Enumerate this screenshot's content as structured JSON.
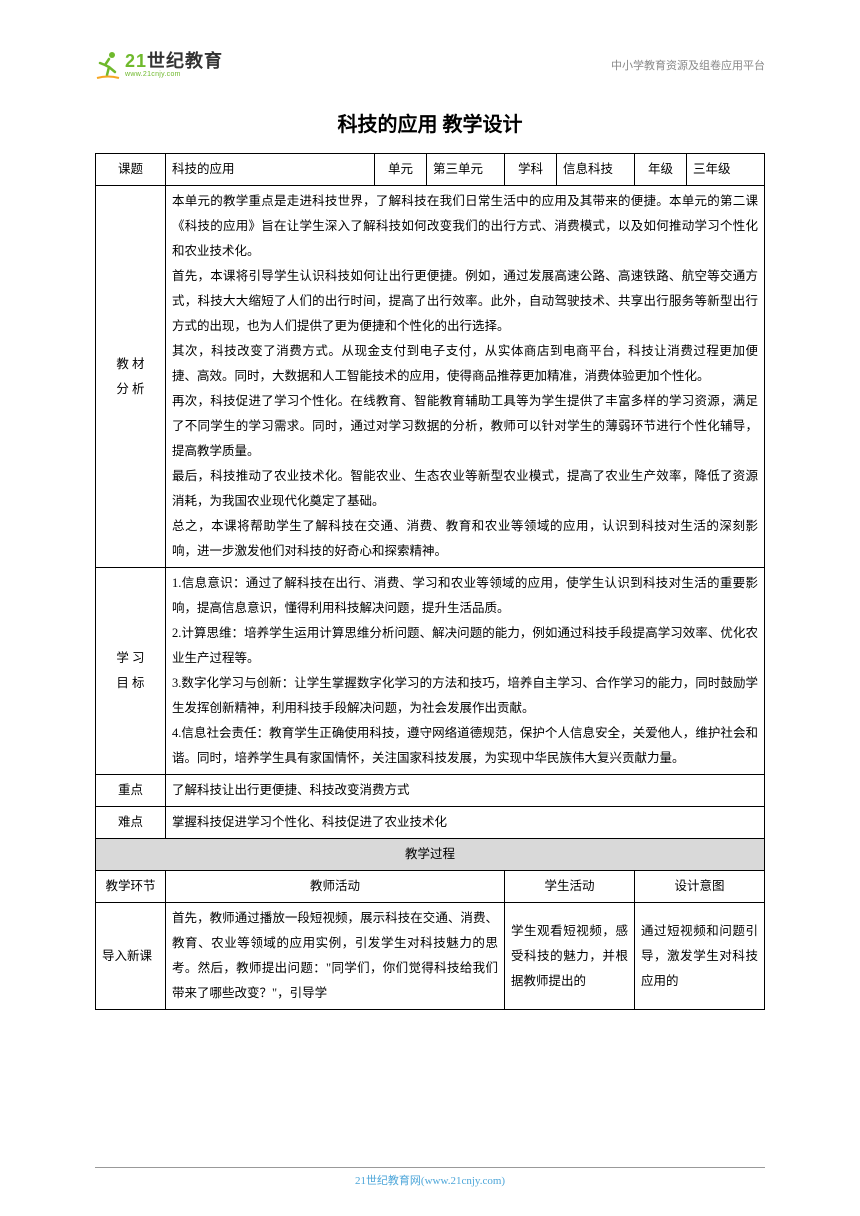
{
  "header": {
    "logo_main_part1": "21",
    "logo_main_part2": "世纪教育",
    "logo_sub": "www.21cnjy.com",
    "right_text": "中小学教育资源及组卷应用平台"
  },
  "title": "科技的应用 教学设计",
  "meta_row": {
    "label_topic": "课题",
    "topic": "科技的应用",
    "label_unit": "单元",
    "unit": "第三单元",
    "label_subject": "学科",
    "subject": "信息科技",
    "label_grade": "年级",
    "grade": "三年级"
  },
  "material": {
    "label1": "教 材",
    "label2": "分 析",
    "text": "本单元的教学重点是走进科技世界，了解科技在我们日常生活中的应用及其带来的便捷。本单元的第二课《科技的应用》旨在让学生深入了解科技如何改变我们的出行方式、消费模式，以及如何推动学习个性化和农业技术化。\n首先，本课将引导学生认识科技如何让出行更便捷。例如，通过发展高速公路、高速铁路、航空等交通方式，科技大大缩短了人们的出行时间，提高了出行效率。此外，自动驾驶技术、共享出行服务等新型出行方式的出现，也为人们提供了更为便捷和个性化的出行选择。\n其次，科技改变了消费方式。从现金支付到电子支付，从实体商店到电商平台，科技让消费过程更加便捷、高效。同时，大数据和人工智能技术的应用，使得商品推荐更加精准，消费体验更加个性化。\n再次，科技促进了学习个性化。在线教育、智能教育辅助工具等为学生提供了丰富多样的学习资源，满足了不同学生的学习需求。同时，通过对学习数据的分析，教师可以针对学生的薄弱环节进行个性化辅导，提高教学质量。\n最后，科技推动了农业技术化。智能农业、生态农业等新型农业模式，提高了农业生产效率，降低了资源消耗，为我国农业现代化奠定了基础。\n总之，本课将帮助学生了解科技在交通、消费、教育和农业等领域的应用，认识到科技对生活的深刻影响，进一步激发他们对科技的好奇心和探索精神。"
  },
  "goals": {
    "label1": "学 习",
    "label2": "目 标",
    "text": "1.信息意识：通过了解科技在出行、消费、学习和农业等领域的应用，使学生认识到科技对生活的重要影响，提高信息意识，懂得利用科技解决问题，提升生活品质。\n2.计算思维：培养学生运用计算思维分析问题、解决问题的能力，例如通过科技手段提高学习效率、优化农业生产过程等。\n3.数字化学习与创新：让学生掌握数字化学习的方法和技巧，培养自主学习、合作学习的能力，同时鼓励学生发挥创新精神，利用科技手段解决问题，为社会发展作出贡献。\n4.信息社会责任：教育学生正确使用科技，遵守网络道德规范，保护个人信息安全，关爱他人，维护社会和谐。同时，培养学生具有家国情怀，关注国家科技发展，为实现中华民族伟大复兴贡献力量。"
  },
  "focus": {
    "label": "重点",
    "text": "了解科技让出行更便捷、科技改变消费方式"
  },
  "difficulty": {
    "label": "难点",
    "text": "掌握科技促进学习个性化、科技促进了农业技术化"
  },
  "process_header": "教学过程",
  "process_cols": {
    "segment": "教学环节",
    "teacher": "教师活动",
    "student": "学生活动",
    "intent": "设计意图"
  },
  "process_row1": {
    "segment": "导入新课",
    "teacher": "首先，教师通过播放一段短视频，展示科技在交通、消费、教育、农业等领域的应用实例，引发学生对科技魅力的思考。然后，教师提出问题：\"同学们，你们觉得科技给我们带来了哪些改变？\"，引导学",
    "student": "学生观看短视频，感受科技的魅力，并根据教师提出的",
    "intent": "通过短视频和问题引导，激发学生对科技应用的"
  },
  "footer": "21世纪教育网(www.21cnjy.com)",
  "colors": {
    "accent_green": "#6fb92c",
    "header_gray": "#888888",
    "section_bg": "#d9d9d9",
    "footer_blue": "#4da6d9",
    "border": "#000000"
  },
  "typography": {
    "body_font": "SimSun",
    "title_size_pt": 15,
    "body_size_pt": 9.5,
    "line_height": 2.0
  }
}
